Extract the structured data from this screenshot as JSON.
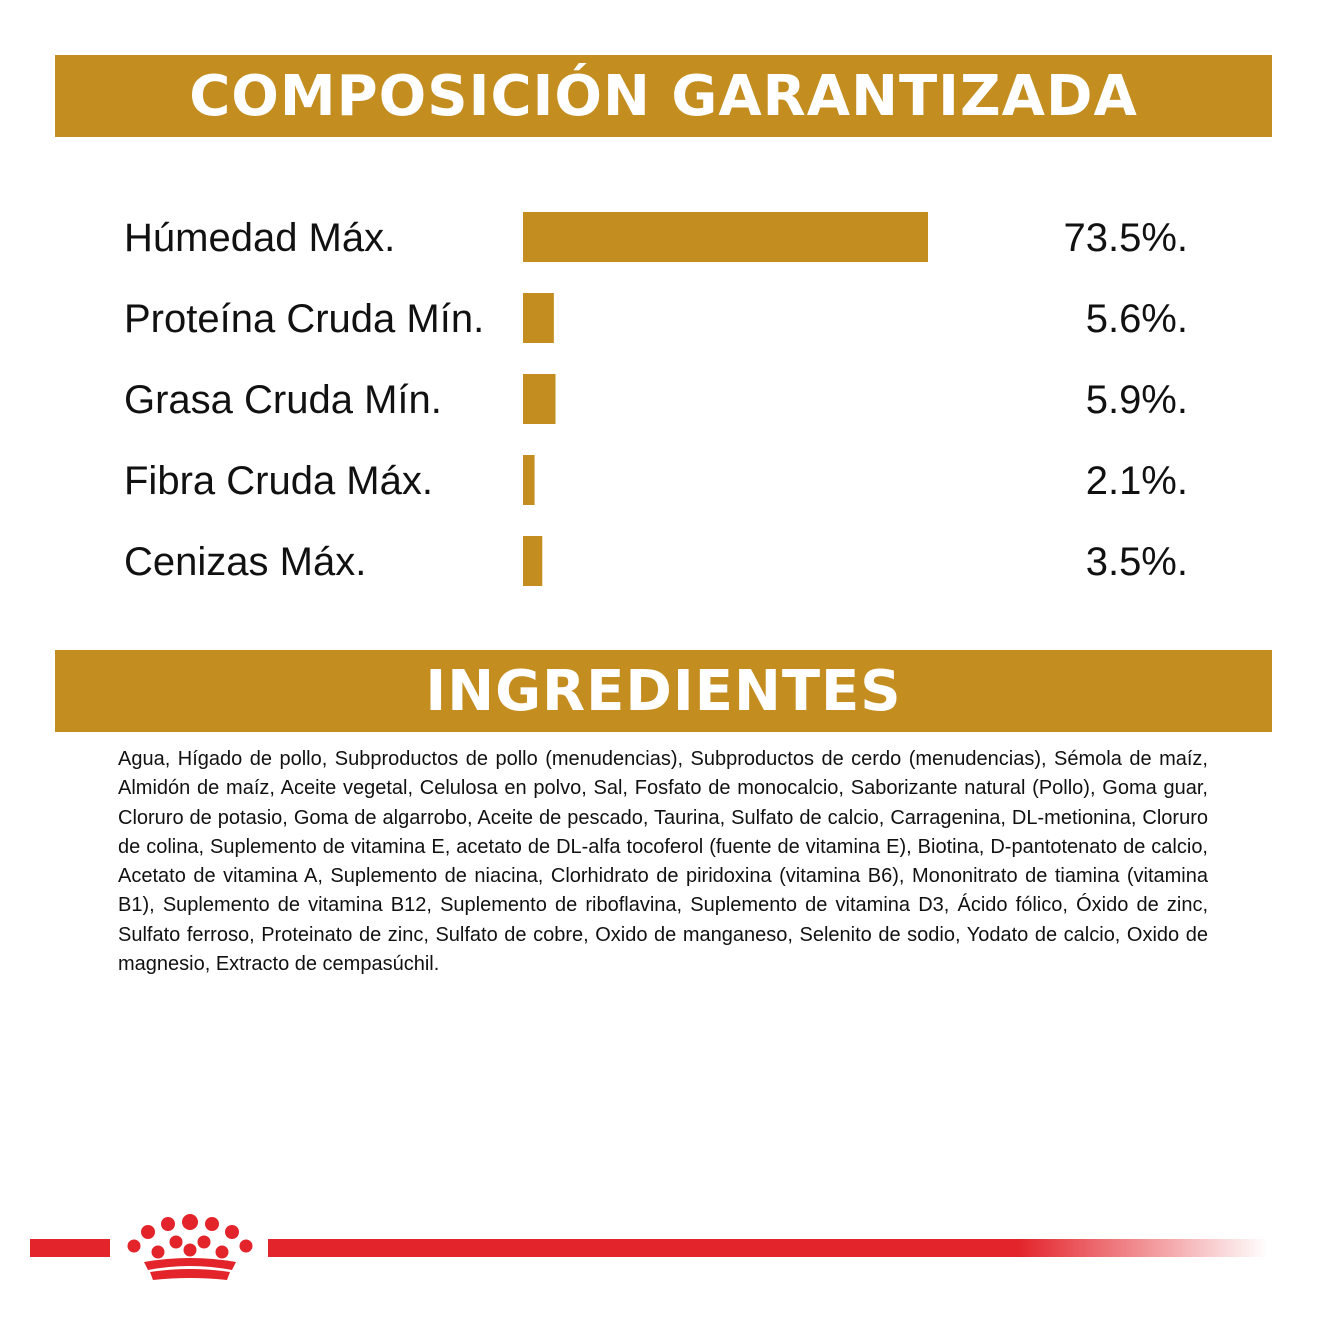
{
  "sections": {
    "composition_title": "COMPOSICIÓN GARANTIZADA",
    "ingredients_title": "INGREDIENTES"
  },
  "chart_data": {
    "type": "bar",
    "orientation": "horizontal",
    "title": "COMPOSICIÓN GARANTIZADA",
    "categories": [
      "Húmedad Máx.",
      "Proteína Cruda Mín.",
      "Grasa Cruda Mín.",
      "Fibra Cruda Máx.",
      "Cenizas Máx."
    ],
    "values": [
      73.5,
      5.6,
      5.9,
      2.1,
      3.5
    ],
    "value_labels": [
      "73.5%.",
      "5.6%.",
      "5.9%.",
      "2.1%.",
      "3.5%."
    ],
    "unit": "%",
    "xlim": [
      0,
      73.5
    ],
    "bar_color": "#c48d1f"
  },
  "ingredients_text": "Agua, Hígado de pollo, Subproductos de pollo (menudencias), Subproductos de cerdo (menudencias), Sémola de maíz, Almidón de maíz, Aceite vegetal, Celulosa en polvo, Sal, Fosfato de monocalcio, Saborizante natural (Pollo), Goma guar, Cloruro de potasio, Goma  de algarrobo, Aceite de pescado, Taurina, Sulfato de calcio, Carragenina, DL-metionina, Cloruro de colina, Suplemento de vitamina E, acetato de DL-alfa tocoferol (fuente de vitamina E), Biotina, D-pantotenato de calcio, Acetato de vitamina A, Suplemento de niacina, Clorhidrato de piridoxina (vitamina B6), Mononitrato de tiamina (vitamina B1), Suplemento de vitamina B12, Suplemento de riboflavina, Suplemento de vitamina D3, Ácido fólico, Óxido de zinc, Sulfato ferroso, Proteinato de zinc, Sulfato de cobre, Oxido de manganeso, Selenito de sodio, Yodato de calcio, Oxido de magnesio, Extracto de cempasúchil.",
  "brand": {
    "logo_icon": "crown-icon",
    "accent_color": "#e3242b"
  }
}
